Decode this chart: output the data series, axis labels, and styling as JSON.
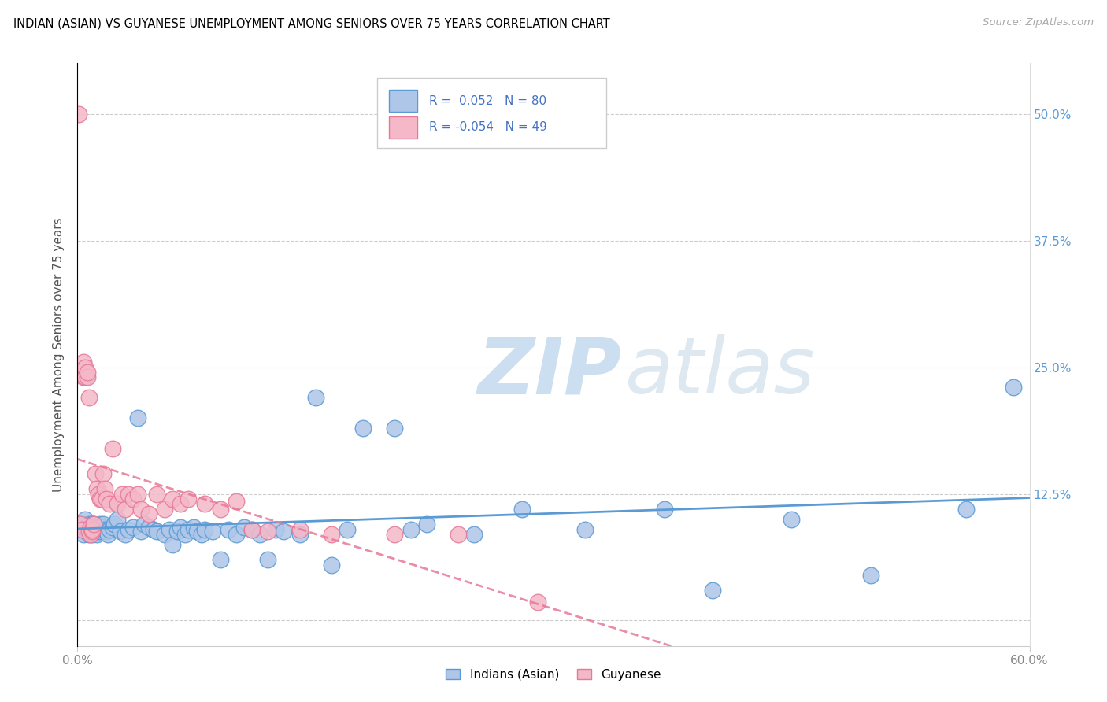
{
  "title": "INDIAN (ASIAN) VS GUYANESE UNEMPLOYMENT AMONG SENIORS OVER 75 YEARS CORRELATION CHART",
  "source": "Source: ZipAtlas.com",
  "ylabel": "Unemployment Among Seniors over 75 years",
  "xlim": [
    0.0,
    0.6
  ],
  "ylim": [
    -0.025,
    0.55
  ],
  "R_indian": 0.052,
  "N_indian": 80,
  "R_guyanese": -0.054,
  "N_guyanese": 49,
  "indian_color": "#aec6e8",
  "indian_edge_color": "#5b9bd5",
  "guyanese_color": "#f4b8c8",
  "guyanese_edge_color": "#e87898",
  "indian_line_color": "#5b9bd5",
  "guyanese_line_color": "#e87898",
  "watermark_zip": "ZIP",
  "watermark_atlas": "atlas",
  "legend_label_indian": "Indians (Asian)",
  "legend_label_guyanese": "Guyanese",
  "indian_x": [
    0.002,
    0.003,
    0.004,
    0.005,
    0.005,
    0.006,
    0.006,
    0.007,
    0.007,
    0.008,
    0.008,
    0.009,
    0.009,
    0.01,
    0.01,
    0.011,
    0.011,
    0.012,
    0.012,
    0.013,
    0.013,
    0.014,
    0.015,
    0.015,
    0.016,
    0.017,
    0.018,
    0.019,
    0.02,
    0.022,
    0.023,
    0.025,
    0.027,
    0.03,
    0.032,
    0.035,
    0.038,
    0.04,
    0.042,
    0.045,
    0.048,
    0.05,
    0.055,
    0.058,
    0.06,
    0.063,
    0.065,
    0.068,
    0.07,
    0.073,
    0.075,
    0.078,
    0.08,
    0.085,
    0.09,
    0.095,
    0.1,
    0.105,
    0.11,
    0.115,
    0.12,
    0.125,
    0.13,
    0.14,
    0.15,
    0.16,
    0.17,
    0.18,
    0.2,
    0.21,
    0.22,
    0.25,
    0.28,
    0.32,
    0.37,
    0.4,
    0.45,
    0.5,
    0.56,
    0.59
  ],
  "indian_y": [
    0.09,
    0.095,
    0.085,
    0.09,
    0.1,
    0.092,
    0.088,
    0.095,
    0.085,
    0.092,
    0.088,
    0.095,
    0.085,
    0.09,
    0.095,
    0.092,
    0.088,
    0.09,
    0.085,
    0.092,
    0.088,
    0.095,
    0.088,
    0.092,
    0.095,
    0.09,
    0.088,
    0.085,
    0.09,
    0.092,
    0.095,
    0.1,
    0.088,
    0.085,
    0.09,
    0.092,
    0.2,
    0.088,
    0.095,
    0.092,
    0.09,
    0.088,
    0.085,
    0.09,
    0.075,
    0.088,
    0.092,
    0.085,
    0.09,
    0.092,
    0.088,
    0.085,
    0.09,
    0.088,
    0.06,
    0.09,
    0.085,
    0.092,
    0.09,
    0.085,
    0.06,
    0.09,
    0.088,
    0.085,
    0.22,
    0.055,
    0.09,
    0.19,
    0.19,
    0.09,
    0.095,
    0.085,
    0.11,
    0.09,
    0.11,
    0.03,
    0.1,
    0.045,
    0.11,
    0.23
  ],
  "guyanese_x": [
    0.001,
    0.002,
    0.003,
    0.004,
    0.004,
    0.005,
    0.005,
    0.006,
    0.006,
    0.007,
    0.007,
    0.008,
    0.008,
    0.009,
    0.009,
    0.01,
    0.011,
    0.012,
    0.013,
    0.014,
    0.015,
    0.016,
    0.017,
    0.018,
    0.02,
    0.022,
    0.025,
    0.028,
    0.03,
    0.032,
    0.035,
    0.038,
    0.04,
    0.045,
    0.05,
    0.055,
    0.06,
    0.065,
    0.07,
    0.08,
    0.09,
    0.1,
    0.11,
    0.12,
    0.14,
    0.16,
    0.2,
    0.24,
    0.29
  ],
  "guyanese_y": [
    0.5,
    0.095,
    0.09,
    0.24,
    0.255,
    0.24,
    0.25,
    0.24,
    0.245,
    0.22,
    0.088,
    0.085,
    0.092,
    0.088,
    0.09,
    0.095,
    0.145,
    0.13,
    0.125,
    0.12,
    0.12,
    0.145,
    0.13,
    0.12,
    0.115,
    0.17,
    0.115,
    0.125,
    0.11,
    0.125,
    0.12,
    0.125,
    0.11,
    0.105,
    0.125,
    0.11,
    0.12,
    0.115,
    0.12,
    0.115,
    0.11,
    0.118,
    0.09,
    0.088,
    0.09,
    0.085,
    0.085,
    0.085,
    0.018
  ]
}
